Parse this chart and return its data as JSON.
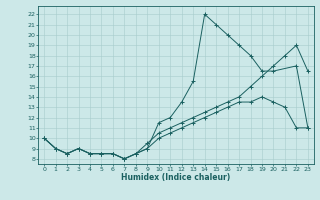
{
  "xlabel": "Humidex (Indice chaleur)",
  "bg_color": "#cce8e8",
  "line_color": "#1a6060",
  "grid_color": "#a8cccc",
  "xlim": [
    -0.5,
    23.5
  ],
  "ylim": [
    7.5,
    22.8
  ],
  "xticks": [
    0,
    1,
    2,
    3,
    4,
    5,
    6,
    7,
    8,
    9,
    10,
    11,
    12,
    13,
    14,
    15,
    16,
    17,
    18,
    19,
    20,
    21,
    22,
    23
  ],
  "yticks": [
    8,
    9,
    10,
    11,
    12,
    13,
    14,
    15,
    16,
    17,
    18,
    19,
    20,
    21,
    22
  ],
  "lines": [
    {
      "x": [
        0,
        1,
        2,
        3,
        4,
        5,
        6,
        7,
        8,
        9,
        10,
        11,
        12,
        13,
        14,
        15,
        16,
        17,
        18,
        19,
        20,
        22,
        23
      ],
      "y": [
        10,
        9,
        8.5,
        9,
        8.5,
        8.5,
        8.5,
        8,
        8.5,
        9,
        11.5,
        12,
        13.5,
        15.5,
        22,
        21,
        20,
        19,
        18,
        16.5,
        16.5,
        17,
        11
      ]
    },
    {
      "x": [
        0,
        1,
        2,
        3,
        4,
        5,
        6,
        7,
        8,
        9,
        10,
        11,
        12,
        13,
        14,
        15,
        16,
        17,
        18,
        19,
        20,
        21,
        22,
        23
      ],
      "y": [
        10,
        9,
        8.5,
        9,
        8.5,
        8.5,
        8.5,
        8,
        8.5,
        9.5,
        10.5,
        11,
        11.5,
        12,
        12.5,
        13,
        13.5,
        14,
        15,
        16,
        17,
        18,
        19,
        16.5
      ]
    },
    {
      "x": [
        0,
        1,
        2,
        3,
        4,
        5,
        6,
        7,
        8,
        9,
        10,
        11,
        12,
        13,
        14,
        15,
        16,
        17,
        18,
        19,
        20,
        21,
        22,
        23
      ],
      "y": [
        10,
        9,
        8.5,
        9,
        8.5,
        8.5,
        8.5,
        8,
        8.5,
        9,
        10,
        10.5,
        11,
        11.5,
        12,
        12.5,
        13,
        13.5,
        13.5,
        14,
        13.5,
        13,
        11,
        11
      ]
    }
  ]
}
